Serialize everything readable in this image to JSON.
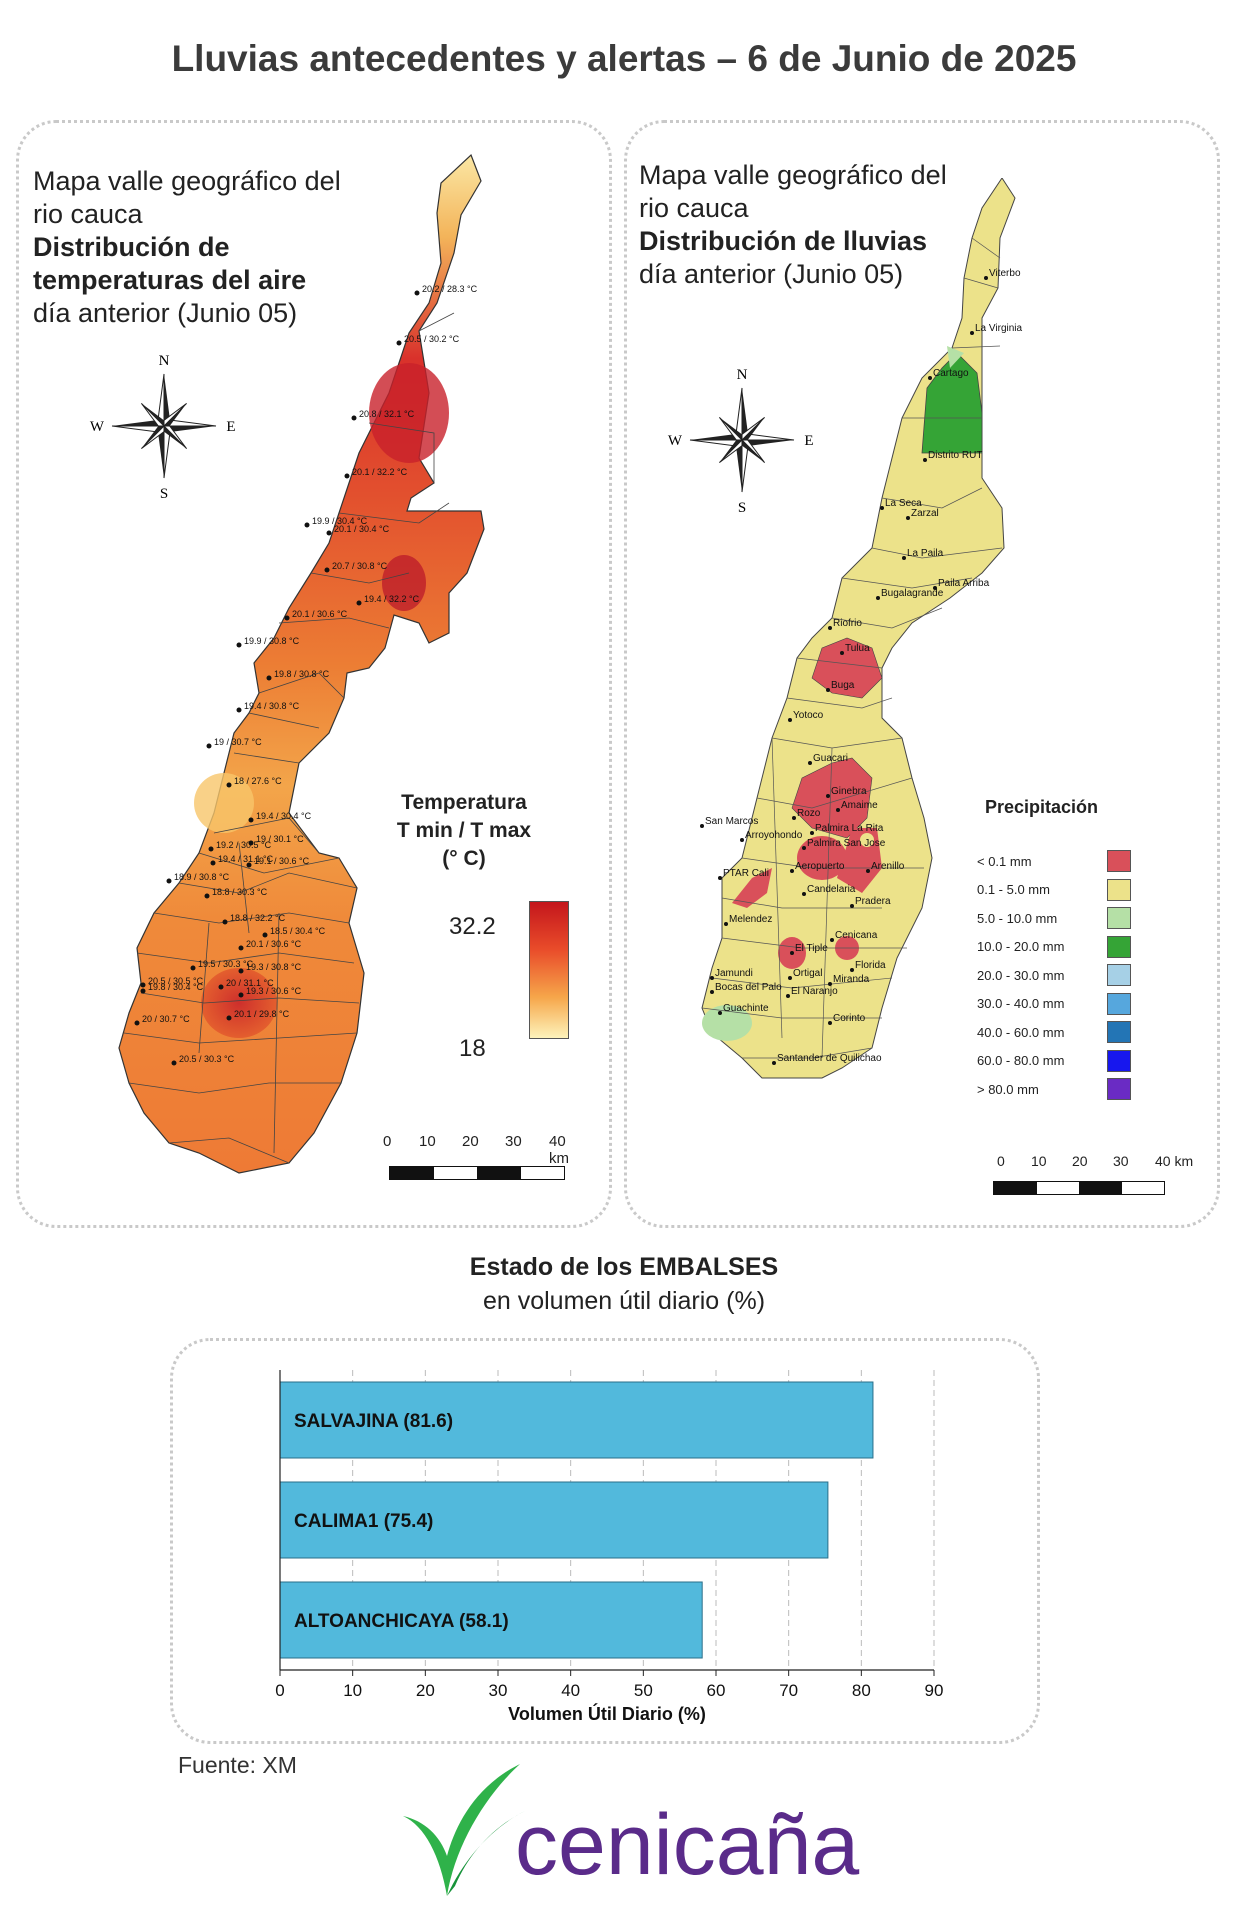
{
  "title": "Lluvias antecedentes y alertas – 6 de Junio de 2025",
  "temp_map": {
    "title_line1": "Mapa valle geográfico del",
    "title_line2": "rio cauca",
    "title_bold1": "Distribución de",
    "title_bold2": "temperaturas del aire",
    "subtitle": "día anterior (Junio 05)",
    "legend_title_1": "Temperatura",
    "legend_title_2": "T min / T max",
    "legend_title_3": "(° C)",
    "legend_max": "32.2",
    "legend_min": "18",
    "stations": [
      "20.2 / 28.3 °C",
      "20.5 / 30.2 °C",
      "20.8 / 32.1 °C",
      "20.1 / 32.2 °C",
      "19.9 / 30.4 °C",
      "20.1 / 30.4 °C",
      "20.7 / 30.8 °C",
      "19.4 / 32.2 °C",
      "20.1 / 30.6 °C",
      "19.9 / 30.8 °C",
      "19.8 / 30.8 °C",
      "19.4 / 30.8 °C",
      "19 / 30.7 °C",
      "18 / 27.6 °C",
      "19.4 / 30.4 °C",
      "19 / 30.1 °C",
      "19.2 / 30.5 °C",
      "19.4 / 31.1 °C",
      "19.1 / 30.6 °C",
      "18.9 / 30.8 °C",
      "18.8 / 30.3 °C",
      "18.8 / 32.2 °C",
      "18.5 / 30.4 °C",
      "20.1 / 30.6 °C",
      "19.3 / 30.8 °C",
      "19.5 / 30.3 °C",
      "20.5 / 30.5 °C",
      "19.8 / 30.4 °C",
      "20 / 31.1 °C",
      "19.3 / 30.6 °C",
      "20 / 30.7 °C",
      "20.1 / 29.8 °C",
      "20.5 / 30.3 °C"
    ],
    "scale_labels": [
      "0",
      "10",
      "20",
      "30",
      "40 km"
    ]
  },
  "rain_map": {
    "title_line1": "Mapa valle geográfico del",
    "title_line2": "rio cauca",
    "title_bold": "Distribución de lluvias",
    "subtitle": "día anterior (Junio 05)",
    "legend_title": "Precipitación",
    "legend": [
      {
        "label": "< 0.1 mm",
        "color": "#d9505a"
      },
      {
        "label": "0.1 - 5.0 mm",
        "color": "#ece28a"
      },
      {
        "label": "5.0 - 10.0 mm",
        "color": "#b5e0a6"
      },
      {
        "label": "10.0 - 20.0 mm",
        "color": "#35a436"
      },
      {
        "label": "20.0 - 30.0 mm",
        "color": "#a6d0e6"
      },
      {
        "label": "30.0 - 40.0 mm",
        "color": "#56a7dd"
      },
      {
        "label": "40.0 - 60.0 mm",
        "color": "#2375b5"
      },
      {
        "label": "60.0 - 80.0 mm",
        "color": "#1717ee"
      },
      {
        "label": "> 80.0 mm",
        "color": "#6a2bc4"
      }
    ],
    "towns": [
      "Viterbo",
      "La Virginia",
      "Cartago",
      "Distrito RUT",
      "La Seca",
      "Zarzal",
      "La Paila",
      "Bugalagrande",
      "Paila Arriba",
      "Riofrio",
      "Tulua",
      "Buga",
      "Yotoco",
      "Guacari",
      "Ginebra",
      "San Marcos",
      "Rozo",
      "Amaime",
      "Palmira La Rita",
      "Arroyohondo",
      "Palmira San Jose",
      "Aeropuerto",
      "Arenillo",
      "PTAR Cali",
      "Candelaria",
      "Pradera",
      "Melendez",
      "El Tiple",
      "Cenicana",
      "Florida",
      "Jamundi",
      "Bocas del Palo",
      "Ortigal",
      "Miranda",
      "El Naranjo",
      "Guachinte",
      "Corinto",
      "Santander de Quilichao"
    ],
    "scale_labels": [
      "0",
      "10",
      "20",
      "30",
      "40 km"
    ]
  },
  "reservoirs": {
    "title_bold": "Estado de los EMBALSES",
    "subtitle": "en volumen útil diario (%)"
  },
  "chart_data": {
    "type": "bar",
    "orientation": "horizontal",
    "categories": [
      "SALVAJINA (81.6)",
      "CALIMA1 (75.4)",
      "ALTOANCHICAYA (58.1)"
    ],
    "values": [
      81.6,
      75.4,
      58.1
    ],
    "xlabel": "Volumen Útil Diario (%)",
    "xlim": [
      0,
      90
    ],
    "xticks": [
      "0",
      "10",
      "20",
      "30",
      "40",
      "50",
      "60",
      "70",
      "80",
      "90"
    ],
    "bar_color": "#52b9dc",
    "grid": "vertical dashed"
  },
  "source": "Fuente: XM",
  "logo_text": "cenicaña"
}
